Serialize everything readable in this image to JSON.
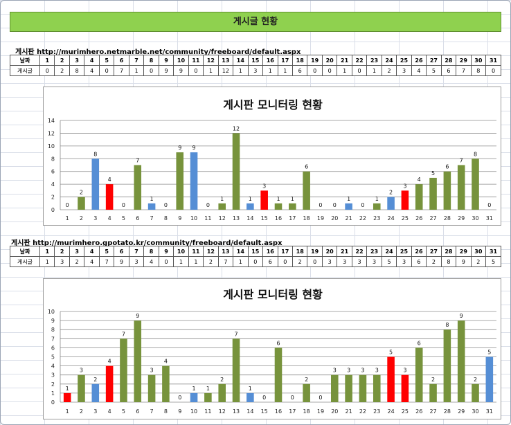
{
  "page": {
    "title": "게시글 현황"
  },
  "colors": {
    "green": "#77933c",
    "blue": "#558ed5",
    "red": "#ff0000",
    "title_bg": "#8fd14f"
  },
  "boards": [
    {
      "label": "게시판 http://murimhero.netmarble.net/community/freeboard/default.aspx",
      "row_headers": [
        "날짜",
        "게시글"
      ],
      "days": [
        "1",
        "2",
        "3",
        "4",
        "5",
        "6",
        "7",
        "8",
        "9",
        "10",
        "11",
        "12",
        "13",
        "14",
        "15",
        "16",
        "17",
        "18",
        "19",
        "20",
        "21",
        "22",
        "23",
        "24",
        "25",
        "26",
        "27",
        "28",
        "29",
        "30",
        "31"
      ],
      "counts": [
        "0",
        "2",
        "8",
        "4",
        "0",
        "7",
        "1",
        "0",
        "9",
        "9",
        "0",
        "1",
        "12",
        "1",
        "3",
        "1",
        "1",
        "6",
        "0",
        "0",
        "1",
        "0",
        "1",
        "2",
        "3",
        "4",
        "5",
        "6",
        "7",
        "8",
        "0"
      ]
    },
    {
      "label": "게시판 http://murimhero.gpotato.kr/community/freeboard/default.aspx",
      "row_headers": [
        "날짜",
        "게시글"
      ],
      "days": [
        "1",
        "2",
        "3",
        "4",
        "5",
        "6",
        "7",
        "8",
        "9",
        "10",
        "11",
        "12",
        "13",
        "14",
        "15",
        "16",
        "17",
        "18",
        "19",
        "20",
        "21",
        "22",
        "23",
        "24",
        "25",
        "26",
        "27",
        "28",
        "29",
        "30",
        "31"
      ],
      "counts": [
        "1",
        "3",
        "2",
        "4",
        "7",
        "9",
        "3",
        "4",
        "0",
        "1",
        "1",
        "2",
        "7",
        "1",
        "0",
        "6",
        "0",
        "2",
        "0",
        "3",
        "3",
        "3",
        "3",
        "5",
        "3",
        "6",
        "2",
        "8",
        "9",
        "2",
        "5"
      ]
    }
  ],
  "chart_data": [
    {
      "type": "bar",
      "title": "게시판 모니터링 현황",
      "categories": [
        "1",
        "2",
        "3",
        "4",
        "5",
        "6",
        "7",
        "8",
        "9",
        "10",
        "11",
        "12",
        "13",
        "14",
        "15",
        "16",
        "17",
        "18",
        "19",
        "20",
        "21",
        "22",
        "23",
        "24",
        "25",
        "26",
        "27",
        "28",
        "29",
        "30",
        "31"
      ],
      "values": [
        0,
        2,
        8,
        4,
        0,
        7,
        1,
        0,
        9,
        9,
        0,
        1,
        12,
        1,
        3,
        1,
        1,
        6,
        0,
        0,
        1,
        0,
        1,
        2,
        3,
        4,
        5,
        6,
        7,
        8,
        0
      ],
      "bar_colors": [
        "green",
        "green",
        "blue",
        "red",
        "green",
        "green",
        "blue",
        "green",
        "green",
        "blue",
        "green",
        "green",
        "green",
        "blue",
        "red",
        "green",
        "green",
        "green",
        "green",
        "green",
        "blue",
        "green",
        "green",
        "blue",
        "red",
        "green",
        "green",
        "green",
        "green",
        "green",
        "green"
      ],
      "ylim": [
        0,
        14
      ],
      "yticks": [
        "0",
        "2",
        "4",
        "6",
        "8",
        "10",
        "12",
        "14"
      ],
      "grid": true,
      "legend": "none"
    },
    {
      "type": "bar",
      "title": "게시판 모니터링 현황",
      "categories": [
        "1",
        "2",
        "3",
        "4",
        "5",
        "6",
        "7",
        "8",
        "9",
        "10",
        "11",
        "12",
        "13",
        "14",
        "15",
        "16",
        "17",
        "18",
        "19",
        "20",
        "21",
        "22",
        "23",
        "24",
        "25",
        "26",
        "27",
        "28",
        "29",
        "30",
        "31"
      ],
      "values": [
        1,
        3,
        2,
        4,
        7,
        9,
        3,
        4,
        0,
        1,
        1,
        2,
        7,
        1,
        0,
        6,
        0,
        2,
        0,
        3,
        3,
        3,
        3,
        5,
        3,
        6,
        2,
        8,
        9,
        2,
        5
      ],
      "bar_colors": [
        "red",
        "green",
        "blue",
        "red",
        "green",
        "green",
        "green",
        "green",
        "green",
        "blue",
        "green",
        "green",
        "green",
        "blue",
        "green",
        "green",
        "green",
        "green",
        "green",
        "green",
        "green",
        "green",
        "green",
        "red",
        "red",
        "green",
        "green",
        "green",
        "green",
        "green",
        "blue"
      ],
      "ylim": [
        0,
        10
      ],
      "yticks": [
        "0",
        "1",
        "2",
        "3",
        "4",
        "5",
        "6",
        "7",
        "8",
        "9",
        "10"
      ],
      "grid": true,
      "legend": "none"
    }
  ]
}
